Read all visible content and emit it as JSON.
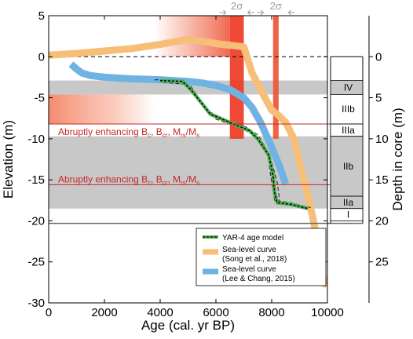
{
  "chart_data": {
    "type": "line",
    "xlabel": "Age (cal. yr BP)",
    "ylabel": "Elevation (m)",
    "y2label": "Depth in core (m)",
    "xlim": [
      0,
      10000
    ],
    "ylim": [
      -30,
      5
    ],
    "y2lim": [
      -5,
      30
    ],
    "x_ticks": [
      0,
      2000,
      4000,
      6000,
      8000,
      10000
    ],
    "y_ticks": [
      -30,
      -25,
      -20,
      -15,
      -10,
      -5,
      0,
      5
    ],
    "y2_ticks": [
      0,
      5,
      10,
      15,
      20,
      25
    ],
    "zero_line": 0,
    "sigma_label": "2σ",
    "sigma_events": [
      {
        "center": 6750,
        "half_width": 250
      },
      {
        "center": 8150,
        "half_width": 100
      }
    ],
    "red_gradients": [
      {
        "y_top": 5,
        "y_bottom": 0,
        "x_start": 3800,
        "x_end": 6500
      },
      {
        "y_top": -4.6,
        "y_bottom": -8.2,
        "x_start": 0,
        "x_end": 3800
      }
    ],
    "gray_bands": [
      {
        "y_top": -2.9,
        "y_bottom": -4.6
      },
      {
        "y_top": -9.7,
        "y_bottom": -18.5
      }
    ],
    "event_lines": [
      {
        "y": -8.2,
        "text": "Abruptly enhancing B",
        "subs": [
          "c",
          "cr",
          "rs"
        ],
        "sep": ", ",
        "tail": "M",
        "tail_sub2": "s"
      },
      {
        "y": -15.6,
        "text": "Abruptly enhancing B",
        "subs": [
          "c",
          "cr",
          "rs"
        ],
        "sep": ", ",
        "tail": "M",
        "tail_sub2": "s"
      }
    ],
    "event_label_parts": {
      "prefix": "Abruptly enhancing ",
      "parts": [
        "B",
        "c",
        ", B",
        "cr",
        ", M",
        "rs",
        "/M",
        "s"
      ]
    },
    "base_line": -20.3,
    "zones": [
      {
        "label": "IV",
        "depth_top": 2.9,
        "depth_bottom": 4.6
      },
      {
        "label": "IIIb",
        "depth_top": 4.6,
        "depth_bottom": 8.2
      },
      {
        "label": "IIIa",
        "depth_top": 8.2,
        "depth_bottom": 9.7
      },
      {
        "label": "IIb",
        "depth_top": 9.7,
        "depth_bottom": 17.0
      },
      {
        "label": "IIa",
        "depth_top": 17.0,
        "depth_bottom": 18.5
      },
      {
        "label": "I",
        "depth_top": 18.5,
        "depth_bottom": 20.0
      }
    ],
    "series": [
      {
        "name": "Sea-level curve (Song et al., 2018)",
        "color": "#f7be78",
        "x": [
          0,
          1000,
          2000,
          3000,
          4000,
          4800,
          5000,
          5500,
          6000,
          6500,
          7000,
          7300,
          7600,
          8000,
          8200,
          8500,
          8800,
          9000,
          9300,
          9500,
          9700,
          9900
        ],
        "y": [
          0.2,
          0.4,
          0.7,
          1.0,
          1.5,
          2.0,
          2.1,
          1.9,
          1.6,
          1.4,
          1.2,
          -2,
          -4,
          -6.5,
          -7,
          -8,
          -10,
          -13,
          -17,
          -20,
          -24,
          -27.7
        ]
      },
      {
        "name": "Sea-level curve (Lee & Chang, 2015)",
        "color": "#6fb3e3",
        "x": [
          800,
          1000,
          1200,
          1500,
          2000,
          2500,
          3000,
          4000,
          5000,
          5500,
          6000,
          6500,
          7000,
          7300,
          7600,
          8000,
          8300,
          8500
        ],
        "y": [
          -0.9,
          -1.5,
          -2.0,
          -2.3,
          -2.5,
          -2.6,
          -2.7,
          -2.8,
          -3.0,
          -3.2,
          -3.5,
          -4.0,
          -5.0,
          -6.2,
          -8.0,
          -11.0,
          -13.5,
          -15.5
        ]
      },
      {
        "name": "YAR-4 age model",
        "color": "#2e7d32",
        "x": [
          4000,
          4800,
          5100,
          5800,
          6700,
          7200,
          7500,
          7900,
          8050,
          8100,
          8200,
          8700,
          9300
        ],
        "y": [
          -2.9,
          -3.0,
          -4.0,
          -7.0,
          -8.3,
          -9.0,
          -10.0,
          -12.0,
          -14.5,
          -16.5,
          -17.8,
          -18.0,
          -18.5
        ]
      }
    ],
    "age_model_envelope_upper": {
      "x": [
        3800,
        4700,
        5100,
        5700,
        6500,
        7100,
        7500,
        7850,
        7950,
        8100,
        8700,
        9400
      ],
      "y": [
        -2.8,
        -2.9,
        -3.6,
        -6.6,
        -7.9,
        -8.6,
        -9.5,
        -11.5,
        -14.2,
        -17.5,
        -17.8,
        -18.4
      ]
    },
    "age_model_envelope_lower": {
      "x": [
        4100,
        5000,
        5300,
        6000,
        6900,
        7400,
        7700,
        8000,
        8200,
        8300,
        8800,
        9200
      ],
      "y": [
        -3.1,
        -3.4,
        -4.7,
        -7.6,
        -8.7,
        -9.6,
        -10.6,
        -12.8,
        -15.3,
        -17.9,
        -18.2,
        -18.6
      ]
    },
    "legend": [
      "YAR-4 age model",
      "Sea-level curve",
      "(Song et al., 2018)",
      "Sea-level curve",
      "(Lee & Chang, 2015)"
    ]
  }
}
